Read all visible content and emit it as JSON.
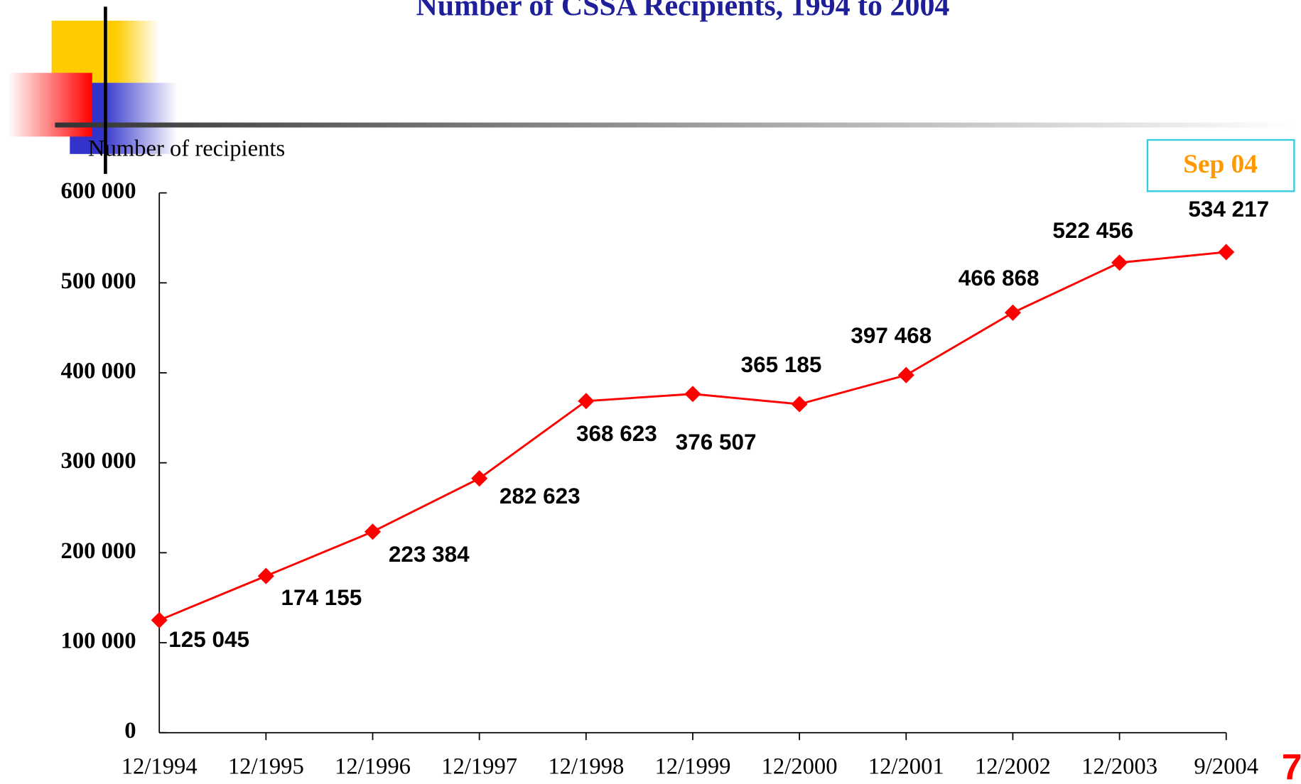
{
  "chart_data": {
    "type": "line",
    "title": "Number of CSSA Recipients, 1994 to 2004",
    "y_label": "Number of recipients",
    "annotation": "Sep 04",
    "page_number": "7",
    "categories": [
      "12/1994",
      "12/1995",
      "12/1996",
      "12/1997",
      "12/1998",
      "12/1999",
      "12/2000",
      "12/2001",
      "12/2002",
      "12/2003",
      "9/2004"
    ],
    "series": [
      {
        "name": "Number of recipients",
        "color": "#ff0000",
        "values": [
          125045,
          174155,
          223384,
          282623,
          368623,
          376507,
          365185,
          397468,
          466868,
          522456,
          534217
        ],
        "value_labels": [
          "125 045",
          "174 155",
          "223 384",
          "282 623",
          "368 623",
          "376 507",
          "365 185",
          "397 468",
          "466 868",
          "522 456",
          "534 217"
        ]
      }
    ],
    "ylim": [
      0,
      600000
    ],
    "yticks": [
      0,
      {
        "value": 100000,
        "label": "100 000"
      },
      {
        "value": 200000,
        "label": "200 000"
      },
      {
        "value": 300000,
        "label": "300 000"
      },
      {
        "value": 400000,
        "label": "400 000"
      },
      {
        "value": 500000,
        "label": "500 000"
      },
      {
        "value": 600000,
        "label": "600 000"
      }
    ],
    "grid": false
  }
}
